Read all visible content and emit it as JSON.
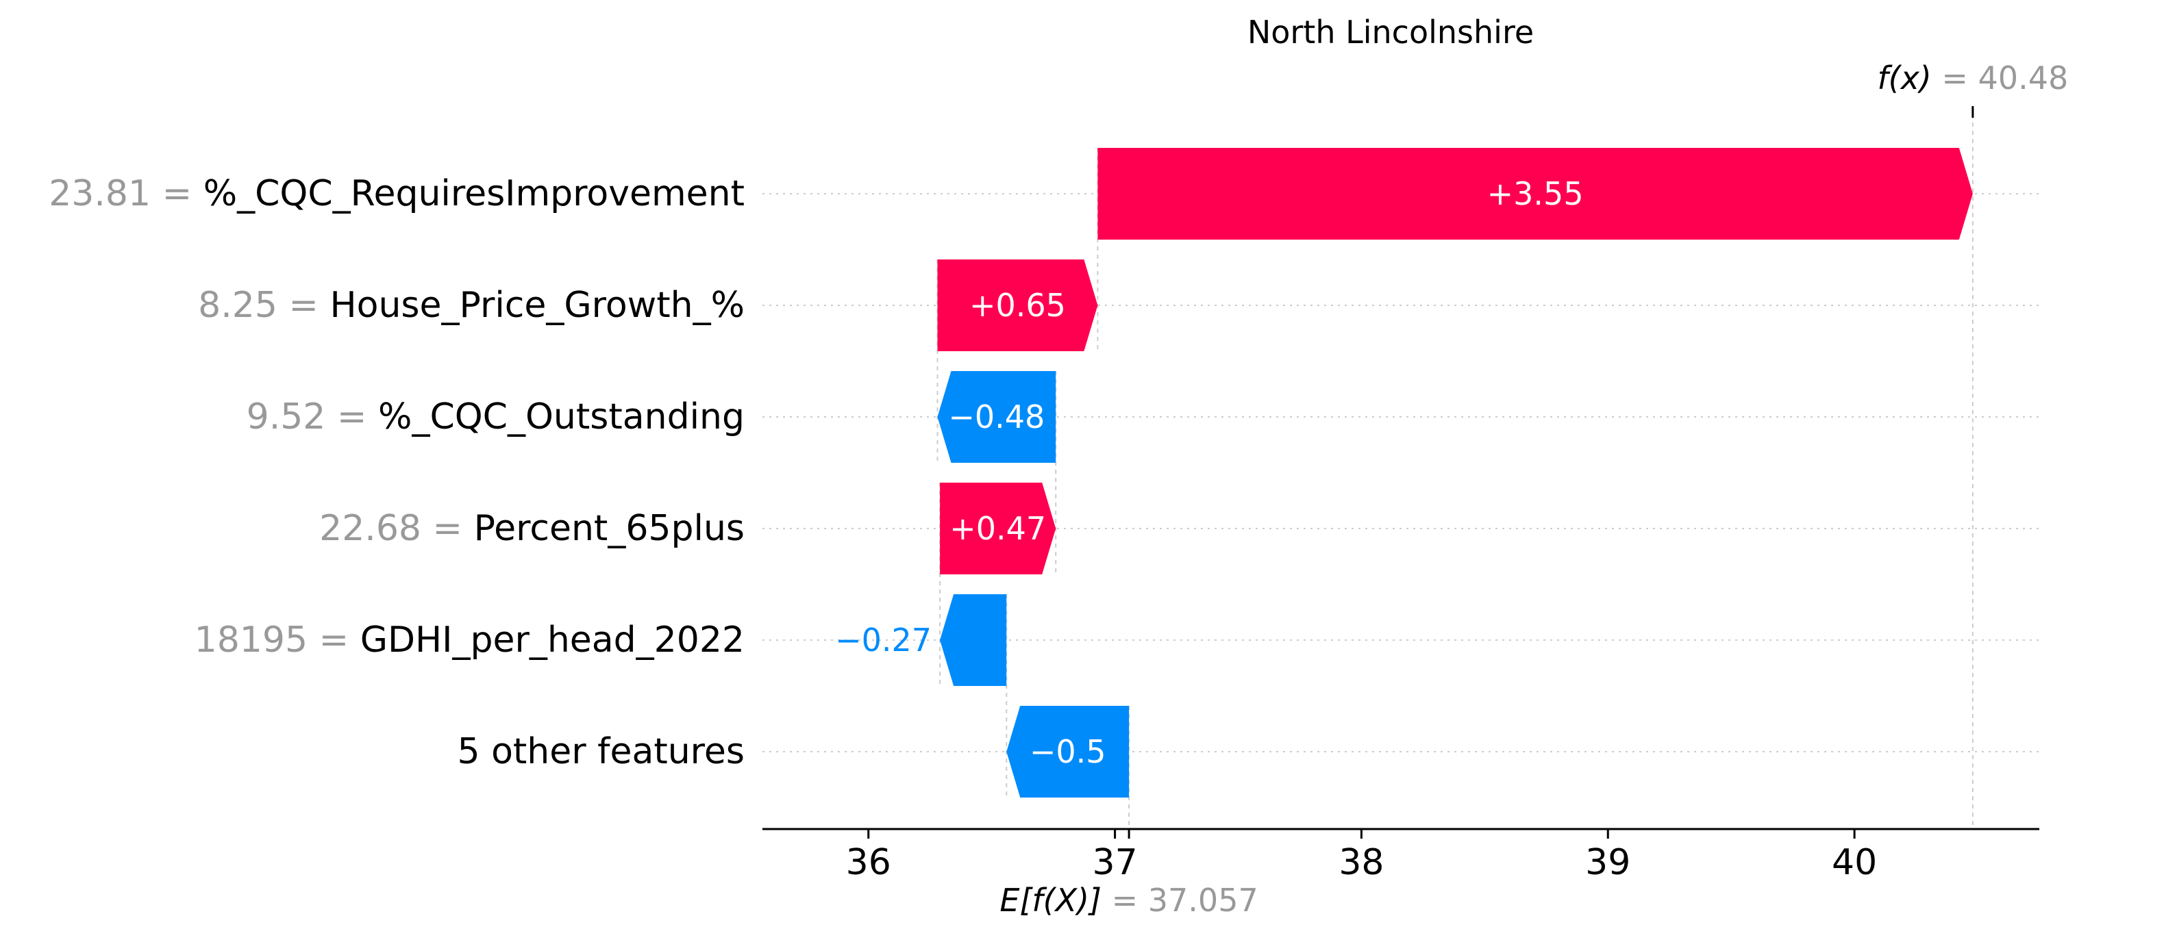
{
  "chart_data": {
    "type": "waterfall",
    "title": "North Lincolnshire",
    "base_value": {
      "label": "E[f(X)]",
      "value_text": "= 37.057",
      "value": 37.057
    },
    "output_value": {
      "label": "f(x)",
      "value_text": "= 40.48",
      "value": 40.48
    },
    "xlim": [
      35.57,
      40.75
    ],
    "x_ticks": [
      36,
      37,
      38,
      39,
      40
    ],
    "x_tick_labels": [
      "36",
      "37",
      "38",
      "39",
      "40"
    ],
    "grid": "dotted horizontal guide per row",
    "features": [
      {
        "feature_value": "23.81",
        "feature_name": "%_CQC_RequiresImprovement",
        "contribution": 3.55,
        "label": "+3.55",
        "start": 36.93,
        "end": 40.48
      },
      {
        "feature_value": "8.25",
        "feature_name": "House_Price_Growth_%",
        "contribution": 0.65,
        "label": "+0.65",
        "start": 36.28,
        "end": 36.93
      },
      {
        "feature_value": "9.52",
        "feature_name": "%_CQC_Outstanding",
        "contribution": -0.48,
        "label": "−0.48",
        "start": 36.76,
        "end": 36.28
      },
      {
        "feature_value": "22.68",
        "feature_name": "Percent_65plus",
        "contribution": 0.47,
        "label": "+0.47",
        "start": 36.29,
        "end": 36.76
      },
      {
        "feature_value": "18195",
        "feature_name": "GDHI_per_head_2022",
        "contribution": -0.27,
        "label": "−0.27",
        "start": 36.56,
        "end": 36.29
      },
      {
        "feature_value": "",
        "feature_name": "5 other features",
        "contribution": -0.5,
        "label": "−0.5",
        "start": 37.057,
        "end": 36.56
      }
    ],
    "colors": {
      "positive": "#ff0051",
      "negative": "#008bfb",
      "feature_value_text": "#999999",
      "feature_name_text": "#000000",
      "axis": "#000000",
      "guide": "#cccccc"
    }
  }
}
